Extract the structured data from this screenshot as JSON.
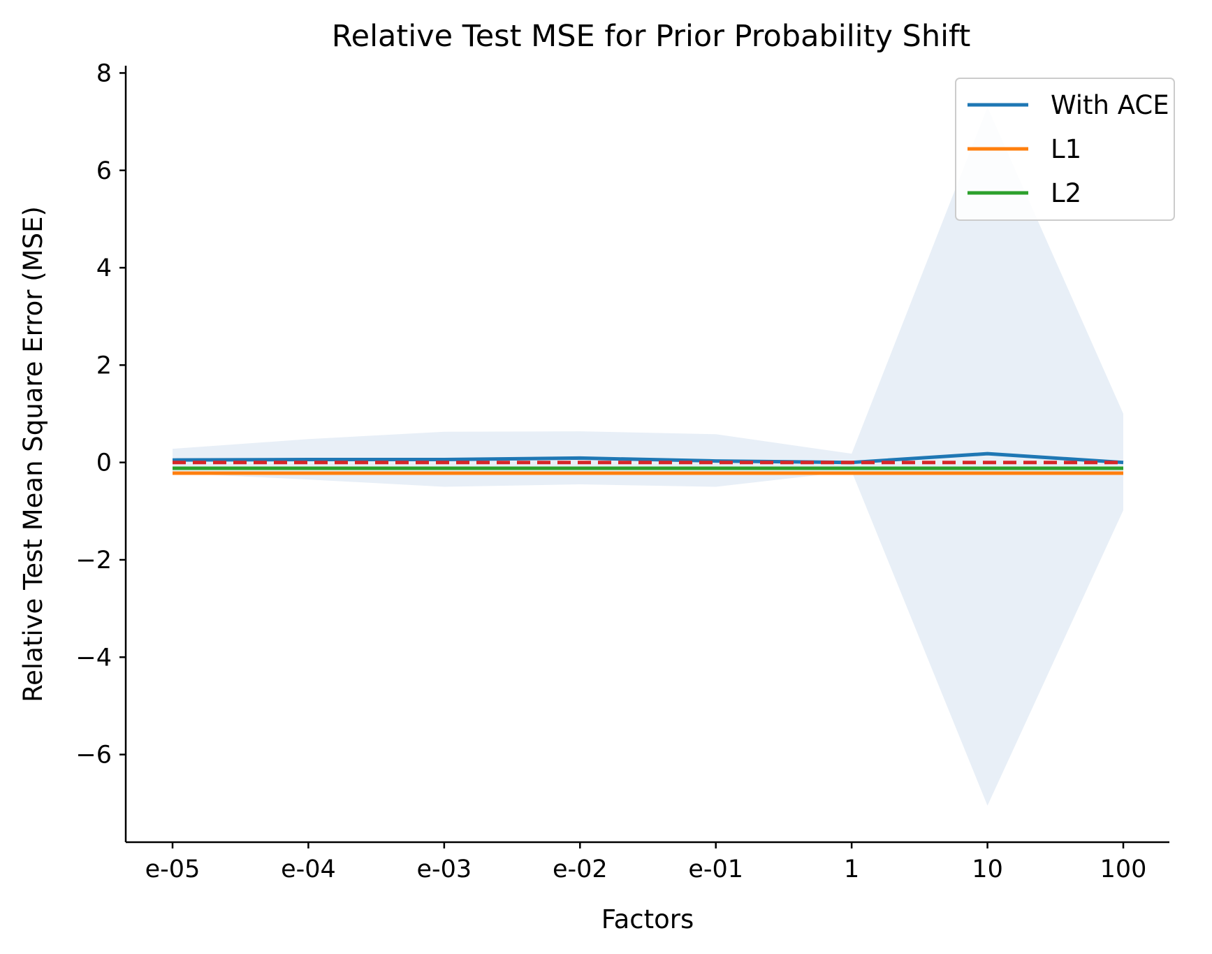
{
  "chart_data": {
    "type": "line",
    "title": "Relative Test MSE for Prior Probability Shift",
    "xlabel": "Factors",
    "ylabel": "Relative Test Mean Square Error (MSE)",
    "categories": [
      "e-05",
      "e-04",
      "e-03",
      "e-02",
      "e-01",
      "1",
      "10",
      "100"
    ],
    "ylim": [
      -7.8,
      8.15
    ],
    "yticks": [
      -6,
      -4,
      -2,
      0,
      2,
      4,
      6,
      8
    ],
    "ytick_labels": [
      "−6",
      "−4",
      "−2",
      "0",
      "2",
      "4",
      "6",
      "8"
    ],
    "grid": false,
    "legend_position": "top-right",
    "series": [
      {
        "name": "With ACE",
        "color": "#1f77b4",
        "values": [
          0.05,
          0.06,
          0.06,
          0.09,
          0.03,
          0.0,
          0.18,
          0.0
        ]
      },
      {
        "name": "L1",
        "color": "#ff7f0e",
        "values": [
          -0.22,
          -0.22,
          -0.22,
          -0.22,
          -0.22,
          -0.22,
          -0.22,
          -0.22
        ]
      },
      {
        "name": "L2",
        "color": "#2ca02c",
        "values": [
          -0.12,
          -0.12,
          -0.12,
          -0.12,
          -0.12,
          -0.12,
          -0.12,
          -0.12
        ]
      }
    ],
    "baseline": {
      "value": 0,
      "color": "#d62728",
      "style": "dashed"
    },
    "band": {
      "color": "#e8eff7",
      "upper": [
        0.28,
        0.48,
        0.63,
        0.64,
        0.58,
        0.18,
        7.3,
        1.0
      ],
      "lower": [
        -0.22,
        -0.35,
        -0.5,
        -0.45,
        -0.5,
        -0.18,
        -7.05,
        -0.98
      ]
    }
  }
}
